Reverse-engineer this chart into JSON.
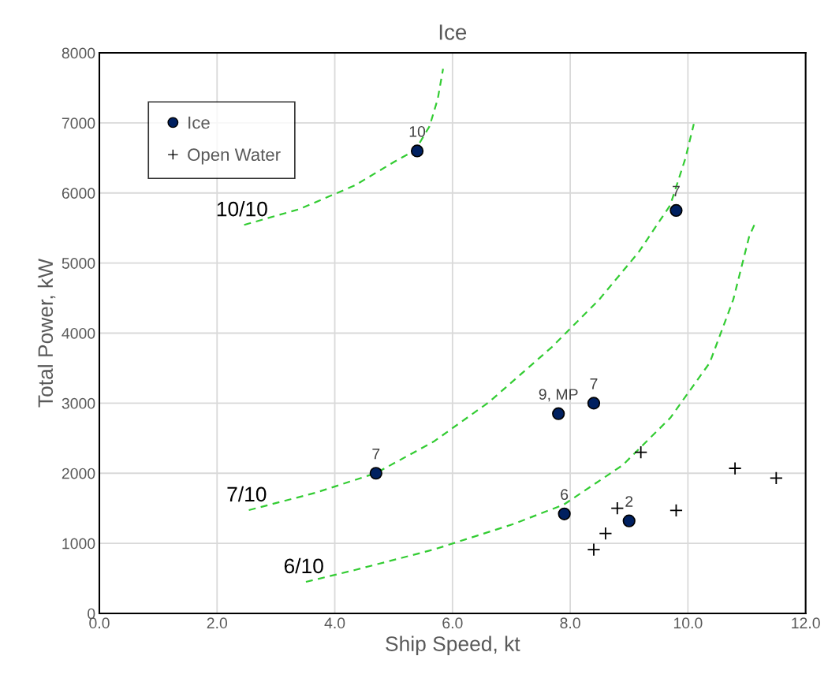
{
  "chart_data": {
    "type": "scatter",
    "title": "Ice",
    "xlabel": "Ship Speed, kt",
    "ylabel": "Total Power, kW",
    "xlim": [
      0,
      12
    ],
    "ylim": [
      0,
      8000
    ],
    "xticks": [
      {
        "value": 0,
        "label": "0.0"
      },
      {
        "value": 2,
        "label": "2.0"
      },
      {
        "value": 4,
        "label": "4.0"
      },
      {
        "value": 6,
        "label": "6.0"
      },
      {
        "value": 8,
        "label": "8.0"
      },
      {
        "value": 10,
        "label": "10.0"
      },
      {
        "value": 12,
        "label": "12.0"
      }
    ],
    "yticks": [
      0,
      1000,
      2000,
      3000,
      4000,
      5000,
      6000,
      7000,
      8000
    ],
    "grid": true,
    "legend": "top left",
    "series": [
      {
        "type": "line",
        "color": "#33cc33",
        "line_style": "dashed",
        "marker": "none",
        "x": [
          2.46,
          3.4,
          4.34,
          5.01,
          5.37,
          5.61,
          5.75,
          5.84
        ],
        "values": [
          5545,
          5770,
          6108,
          6445,
          6614,
          6952,
          7345,
          7773
        ]
      },
      {
        "type": "line",
        "color": "#33cc33",
        "line_style": "dashed",
        "marker": "none",
        "x": [
          2.54,
          3.67,
          4.7,
          5.68,
          6.62,
          7.69,
          8.49,
          9.16,
          9.7,
          9.96,
          10.1
        ],
        "values": [
          1474,
          1721,
          2002,
          2452,
          3015,
          3802,
          4477,
          5152,
          5827,
          6502,
          6985
        ]
      },
      {
        "type": "line",
        "color": "#33cc33",
        "line_style": "dashed",
        "marker": "none",
        "x": [
          3.51,
          4.34,
          5.68,
          7.02,
          7.89,
          8.89,
          9.7,
          10.37,
          10.77,
          11.04,
          11.14
        ],
        "values": [
          450,
          619,
          911,
          1271,
          1552,
          2115,
          2790,
          3577,
          4477,
          5377,
          5568
        ]
      },
      {
        "name": "Ice",
        "color": "#002060",
        "marker": "circle",
        "x": [
          5.4,
          9.8,
          8.4,
          7.8,
          4.7,
          7.9,
          9.0
        ],
        "values": [
          6600,
          5750,
          3000,
          2850,
          2000,
          1420,
          1320
        ]
      },
      {
        "name": "Open Water",
        "color": "#000000",
        "marker": "cross",
        "x": [
          9.2,
          10.8,
          11.5,
          9.8,
          8.8,
          8.6,
          8.4
        ],
        "values": [
          2300,
          2070,
          1930,
          1470,
          1500,
          1140,
          910
        ]
      }
    ],
    "annotations": [
      {
        "text": "10",
        "x": 5.4,
        "y": 6600
      },
      {
        "text": "7",
        "x": 9.8,
        "y": 5750
      },
      {
        "text": "7",
        "x": 8.4,
        "y": 3000
      },
      {
        "text": "9, MP",
        "x": 7.8,
        "y": 2850
      },
      {
        "text": "7",
        "x": 4.7,
        "y": 2000
      },
      {
        "text": "6",
        "x": 7.9,
        "y": 1420
      },
      {
        "text": "2",
        "x": 9.0,
        "y": 1320
      },
      {
        "text": "10/10",
        "x": 2.46,
        "y": 5545
      },
      {
        "text": "7/10",
        "x": 2.54,
        "y": 1474
      },
      {
        "text": "6/10",
        "x": 3.51,
        "y": 450
      }
    ]
  }
}
